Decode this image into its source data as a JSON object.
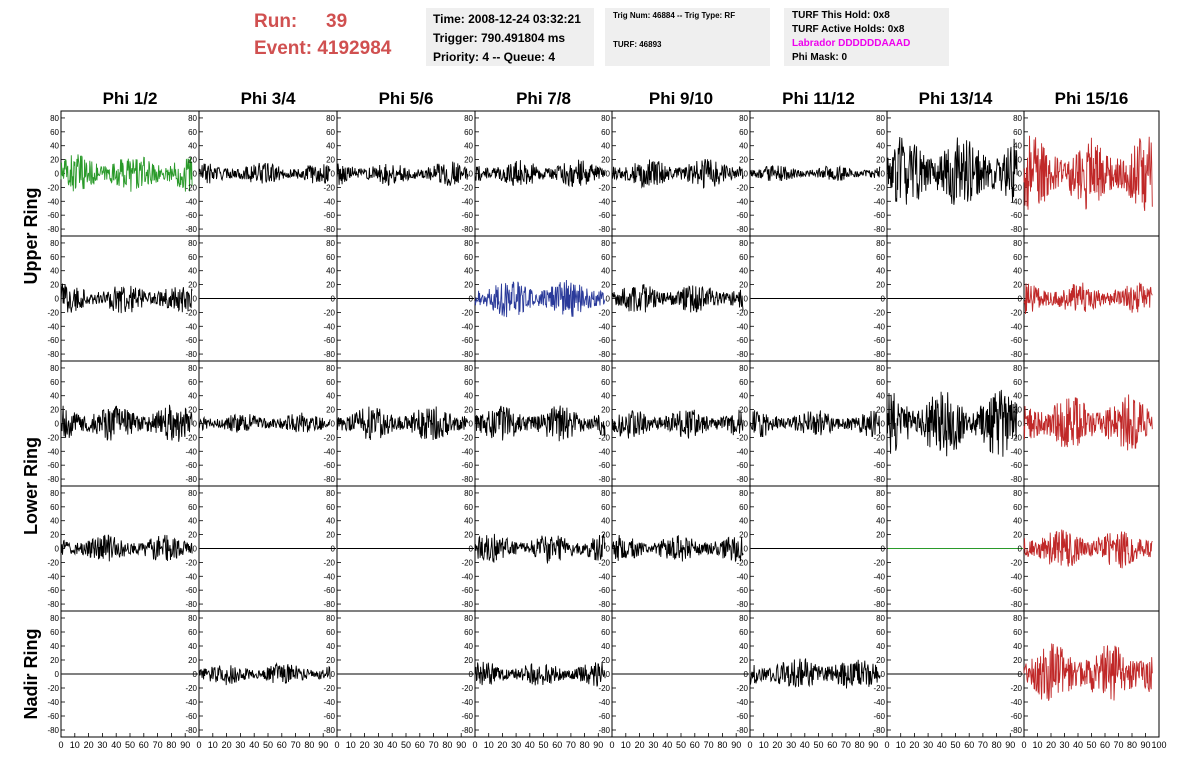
{
  "header": {
    "run_label": "Run:",
    "run_value": "39",
    "event_label": "Event:",
    "event_value": "4192984",
    "time_line": "Time: 2008-12-24 03:32:21",
    "trigger_line": "Trigger: 790.491804 ms",
    "priority_line": "Priority: 4 -- Queue: 4",
    "trig_line": "Trig Num: 46884 -- Trig Type: RF",
    "turf_line": "TURF: 46893",
    "hold_line": "TURF This Hold: 0x8",
    "active_line": "TURF Active Holds: 0x8",
    "labrador_line": "Labrador DDDDDDAAAD",
    "mask_line": "Phi Mask: 0"
  },
  "colors": {
    "header_red": "#d05050",
    "green": "#2a9a2a",
    "blue": "#2a3a9a",
    "red": "#c02828",
    "black": "#000000",
    "magenta": "#ee00ee"
  },
  "chart_data": {
    "type": "line",
    "columns": [
      "Phi 1/2",
      "Phi 3/4",
      "Phi 5/6",
      "Phi 7/8",
      "Phi 9/10",
      "Phi 11/12",
      "Phi 13/14",
      "Phi 15/16"
    ],
    "rings": [
      "Upper Ring",
      "Lower Ring",
      "Nadir Ring"
    ],
    "xlim": [
      0,
      100
    ],
    "ylim": [
      -90,
      90
    ],
    "y_ticks": [
      80,
      60,
      40,
      20,
      0,
      -20,
      -40,
      -60,
      -80
    ],
    "x_ticks": [
      0,
      10,
      20,
      30,
      40,
      50,
      60,
      70,
      80,
      90,
      100
    ],
    "x_tick_labels": [
      "0",
      "10",
      "20",
      "30",
      "40",
      "50",
      "60",
      "70",
      "80",
      "90",
      "100"
    ],
    "panels": [
      {
        "row": 0,
        "col": 0,
        "color": "green",
        "amplitude": 28,
        "flat": false
      },
      {
        "row": 0,
        "col": 1,
        "color": "black",
        "amplitude": 16,
        "flat": false
      },
      {
        "row": 0,
        "col": 2,
        "color": "black",
        "amplitude": 18,
        "flat": false
      },
      {
        "row": 0,
        "col": 3,
        "color": "black",
        "amplitude": 20,
        "flat": false
      },
      {
        "row": 0,
        "col": 4,
        "color": "black",
        "amplitude": 22,
        "flat": false
      },
      {
        "row": 0,
        "col": 5,
        "color": "black",
        "amplitude": 12,
        "flat": false
      },
      {
        "row": 0,
        "col": 6,
        "color": "black",
        "amplitude": 55,
        "flat": false
      },
      {
        "row": 0,
        "col": 7,
        "color": "red",
        "amplitude": 55,
        "flat": false
      },
      {
        "row": 1,
        "col": 0,
        "color": "black",
        "amplitude": 22,
        "flat": false
      },
      {
        "row": 1,
        "col": 1,
        "color": "black",
        "amplitude": 0,
        "flat": true
      },
      {
        "row": 1,
        "col": 2,
        "color": "black",
        "amplitude": 0,
        "flat": true
      },
      {
        "row": 1,
        "col": 3,
        "color": "blue",
        "amplitude": 28,
        "flat": false
      },
      {
        "row": 1,
        "col": 4,
        "color": "black",
        "amplitude": 22,
        "flat": false
      },
      {
        "row": 1,
        "col": 5,
        "color": "black",
        "amplitude": 0,
        "flat": true
      },
      {
        "row": 1,
        "col": 6,
        "color": "black",
        "amplitude": 0,
        "flat": true
      },
      {
        "row": 1,
        "col": 7,
        "color": "red",
        "amplitude": 24,
        "flat": false
      },
      {
        "row": 2,
        "col": 0,
        "color": "black",
        "amplitude": 28,
        "flat": false
      },
      {
        "row": 2,
        "col": 1,
        "color": "black",
        "amplitude": 16,
        "flat": false
      },
      {
        "row": 2,
        "col": 2,
        "color": "black",
        "amplitude": 26,
        "flat": false
      },
      {
        "row": 2,
        "col": 3,
        "color": "black",
        "amplitude": 26,
        "flat": false
      },
      {
        "row": 2,
        "col": 4,
        "color": "black",
        "amplitude": 22,
        "flat": false
      },
      {
        "row": 2,
        "col": 5,
        "color": "black",
        "amplitude": 20,
        "flat": false
      },
      {
        "row": 2,
        "col": 6,
        "color": "black",
        "amplitude": 50,
        "flat": false
      },
      {
        "row": 2,
        "col": 7,
        "color": "red",
        "amplitude": 42,
        "flat": false
      },
      {
        "row": 3,
        "col": 0,
        "color": "black",
        "amplitude": 20,
        "flat": false
      },
      {
        "row": 3,
        "col": 1,
        "color": "black",
        "amplitude": 0,
        "flat": true
      },
      {
        "row": 3,
        "col": 2,
        "color": "black",
        "amplitude": 0,
        "flat": true
      },
      {
        "row": 3,
        "col": 3,
        "color": "black",
        "amplitude": 22,
        "flat": false
      },
      {
        "row": 3,
        "col": 4,
        "color": "black",
        "amplitude": 20,
        "flat": false
      },
      {
        "row": 3,
        "col": 5,
        "color": "black",
        "amplitude": 0,
        "flat": true
      },
      {
        "row": 3,
        "col": 6,
        "color": "green",
        "amplitude": 0,
        "flat": true
      },
      {
        "row": 3,
        "col": 7,
        "color": "red",
        "amplitude": 30,
        "flat": false
      },
      {
        "row": 4,
        "col": 0,
        "color": "black",
        "amplitude": 0,
        "flat": true
      },
      {
        "row": 4,
        "col": 1,
        "color": "black",
        "amplitude": 16,
        "flat": false
      },
      {
        "row": 4,
        "col": 2,
        "color": "black",
        "amplitude": 0,
        "flat": true
      },
      {
        "row": 4,
        "col": 3,
        "color": "black",
        "amplitude": 18,
        "flat": false
      },
      {
        "row": 4,
        "col": 4,
        "color": "black",
        "amplitude": 0,
        "flat": true
      },
      {
        "row": 4,
        "col": 5,
        "color": "black",
        "amplitude": 26,
        "flat": false
      },
      {
        "row": 4,
        "col": 6,
        "color": "black",
        "amplitude": 0,
        "flat": true
      },
      {
        "row": 4,
        "col": 7,
        "color": "red",
        "amplitude": 45,
        "flat": false
      }
    ]
  }
}
